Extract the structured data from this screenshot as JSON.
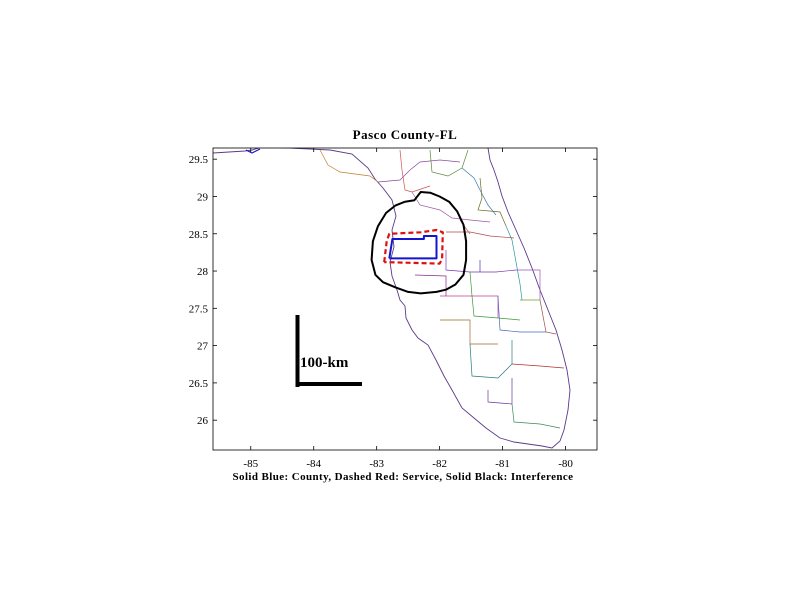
{
  "title": "Pasco County-FL",
  "caption": "Solid Blue: County, Dashed Red: Service, Solid Black: Interference",
  "scale_bar": {
    "label": "100-km"
  },
  "colors": {
    "county": "#1515d0",
    "service": "#e01010",
    "interference": "#000000",
    "coast": "#5a3a8a",
    "plot_bg": "#ffffff"
  },
  "chart_data": {
    "type": "map",
    "xlim": [
      -85.6,
      -79.5
    ],
    "ylim": [
      25.6,
      29.65
    ],
    "x_ticks": [
      -85,
      -84,
      -83,
      -82,
      -81,
      -80
    ],
    "y_ticks": [
      29.5,
      29,
      28.5,
      28,
      27.5,
      27,
      26.5,
      26
    ],
    "x_tick_labels": [
      "-85",
      "-84",
      "-83",
      "-82",
      "-81",
      "-80"
    ],
    "y_tick_labels": [
      "29.5",
      "29",
      "28.5",
      "28",
      "27.5",
      "27",
      "26.5",
      "26"
    ],
    "county_polygon": [
      [
        -82.8,
        28.17
      ],
      [
        -82.75,
        28.43
      ],
      [
        -82.25,
        28.43
      ],
      [
        -82.25,
        28.47
      ],
      [
        -82.05,
        28.47
      ],
      [
        -82.05,
        28.17
      ],
      [
        -82.8,
        28.17
      ]
    ],
    "service_polygon": [
      [
        -82.88,
        28.12
      ],
      [
        -82.84,
        28.4
      ],
      [
        -82.8,
        28.5
      ],
      [
        -82.3,
        28.52
      ],
      [
        -82.05,
        28.55
      ],
      [
        -81.95,
        28.52
      ],
      [
        -81.96,
        28.16
      ],
      [
        -82.0,
        28.1
      ],
      [
        -82.88,
        28.12
      ]
    ],
    "interference_contour": [
      [
        -82.55,
        28.93
      ],
      [
        -82.4,
        28.95
      ],
      [
        -82.3,
        29.06
      ],
      [
        -82.15,
        29.05
      ],
      [
        -82.0,
        29.0
      ],
      [
        -81.85,
        28.93
      ],
      [
        -81.72,
        28.8
      ],
      [
        -81.62,
        28.62
      ],
      [
        -81.58,
        28.4
      ],
      [
        -81.58,
        28.15
      ],
      [
        -81.62,
        27.95
      ],
      [
        -81.75,
        27.82
      ],
      [
        -81.9,
        27.75
      ],
      [
        -82.05,
        27.72
      ],
      [
        -82.3,
        27.7
      ],
      [
        -82.5,
        27.72
      ],
      [
        -82.7,
        27.78
      ],
      [
        -82.9,
        27.85
      ],
      [
        -83.02,
        27.95
      ],
      [
        -83.08,
        28.15
      ],
      [
        -83.06,
        28.4
      ],
      [
        -82.98,
        28.6
      ],
      [
        -82.85,
        28.78
      ],
      [
        -82.7,
        28.88
      ],
      [
        -82.55,
        28.93
      ]
    ]
  }
}
